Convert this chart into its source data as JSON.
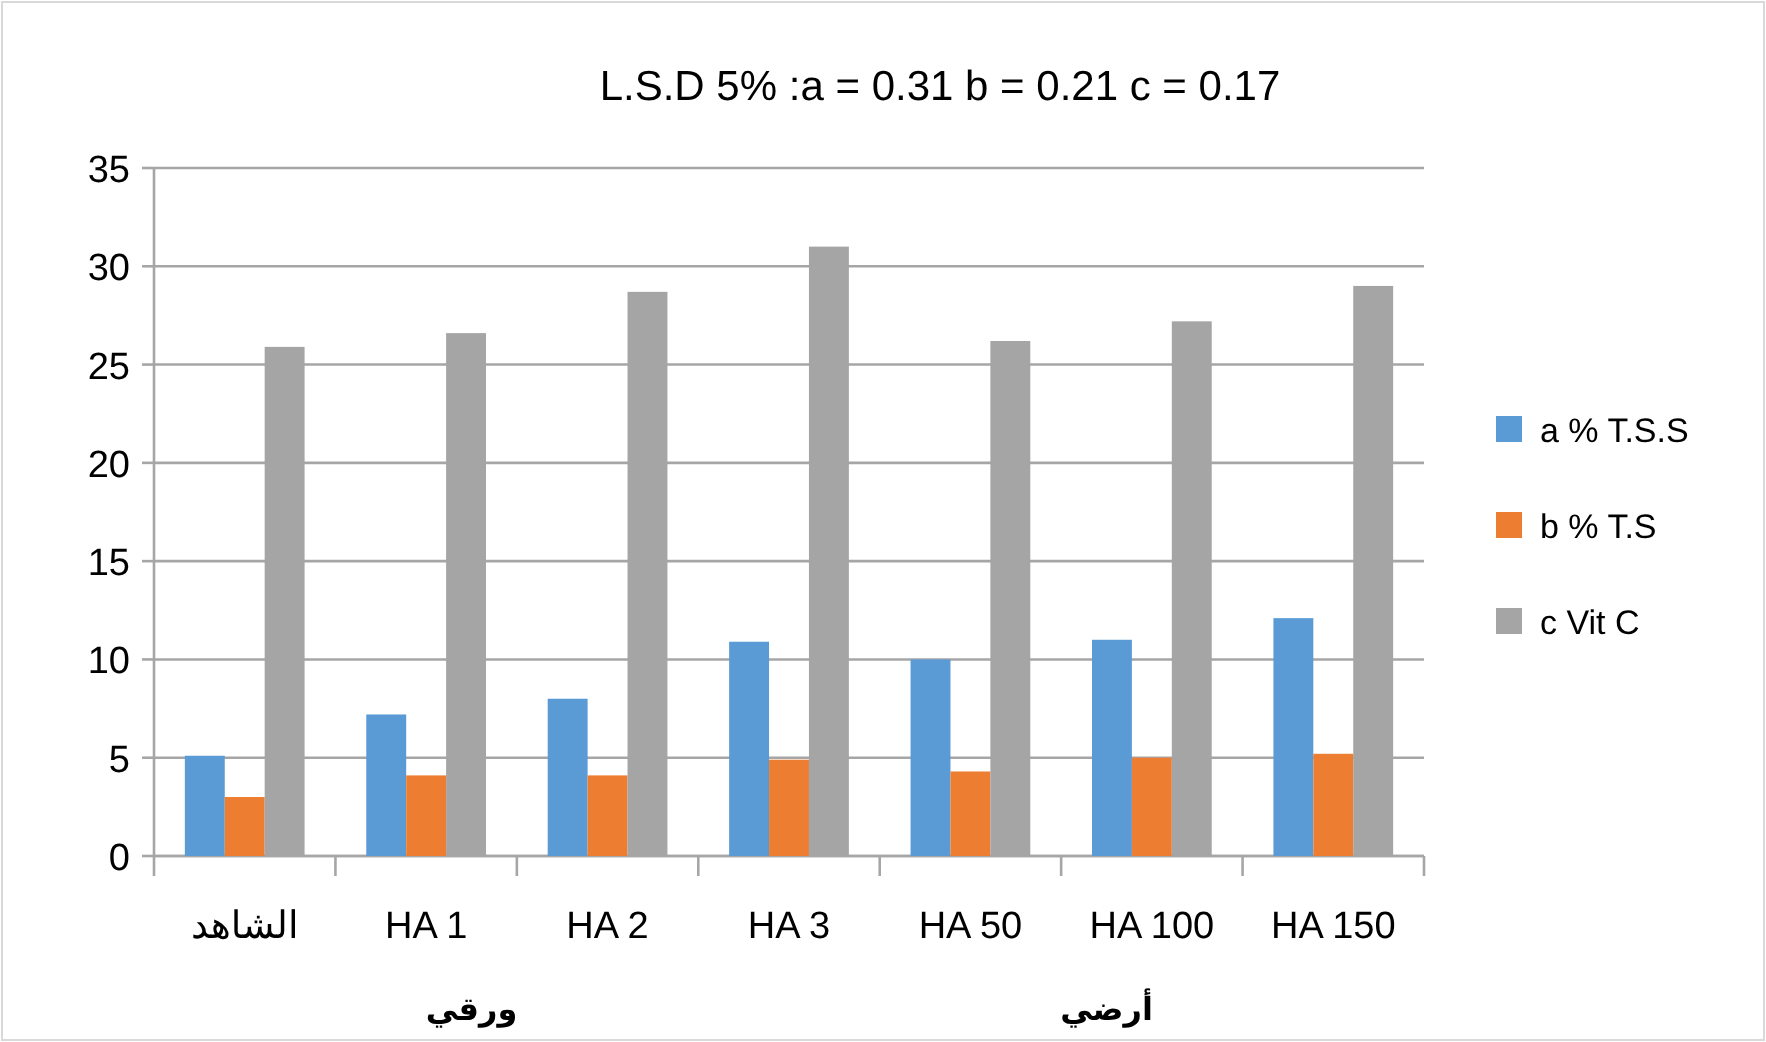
{
  "chart_data": {
    "type": "bar",
    "title": "L.S.D 5% :a = 0.31 b = 0.21 c = 0.17",
    "categories": [
      "الشاهد",
      "HA 1",
      "HA 2",
      "HA 3",
      "HA 50",
      "HA 100",
      "HA 150"
    ],
    "series": [
      {
        "name": "a % T.S.S",
        "color": "#5b9bd5",
        "values": [
          5.1,
          7.2,
          8.0,
          10.9,
          10.0,
          11.0,
          12.1
        ]
      },
      {
        "name": "b % T.S",
        "color": "#ed7d31",
        "values": [
          3.0,
          4.1,
          4.1,
          4.9,
          4.3,
          5.0,
          5.2
        ]
      },
      {
        "name": "c Vit C",
        "color": "#a5a5a5",
        "values": [
          25.9,
          26.6,
          28.7,
          31.0,
          26.2,
          27.2,
          29.0
        ]
      }
    ],
    "ylim": [
      0,
      35
    ],
    "yticks": [
      0,
      5,
      10,
      15,
      20,
      25,
      30,
      35
    ],
    "grid": "y",
    "legend": "right",
    "annotations": [
      "ورقي",
      "أرضي"
    ]
  }
}
